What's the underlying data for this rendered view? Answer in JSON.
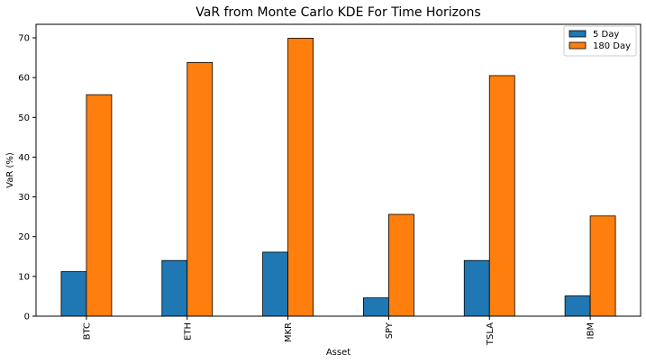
{
  "chart_data": {
    "type": "bar",
    "title": "VaR from Monte Carlo KDE For Time Horizons",
    "xlabel": "Asset",
    "ylabel": "VaR (%)",
    "categories": [
      "BTC",
      "ETH",
      "MKR",
      "SPY",
      "TSLA",
      "IBM"
    ],
    "series": [
      {
        "name": "5 Day",
        "color": "#1f77b4",
        "values": [
          11.2,
          14.0,
          16.1,
          4.6,
          14.0,
          5.1
        ]
      },
      {
        "name": "180 Day",
        "color": "#ff7f0e",
        "values": [
          55.7,
          63.8,
          69.9,
          25.6,
          60.5,
          25.2
        ]
      }
    ],
    "ylim": [
      0,
      73.4
    ],
    "yticks": [
      0,
      10,
      20,
      30,
      40,
      50,
      60,
      70
    ],
    "legend_position": "top-right",
    "grid": false
  }
}
